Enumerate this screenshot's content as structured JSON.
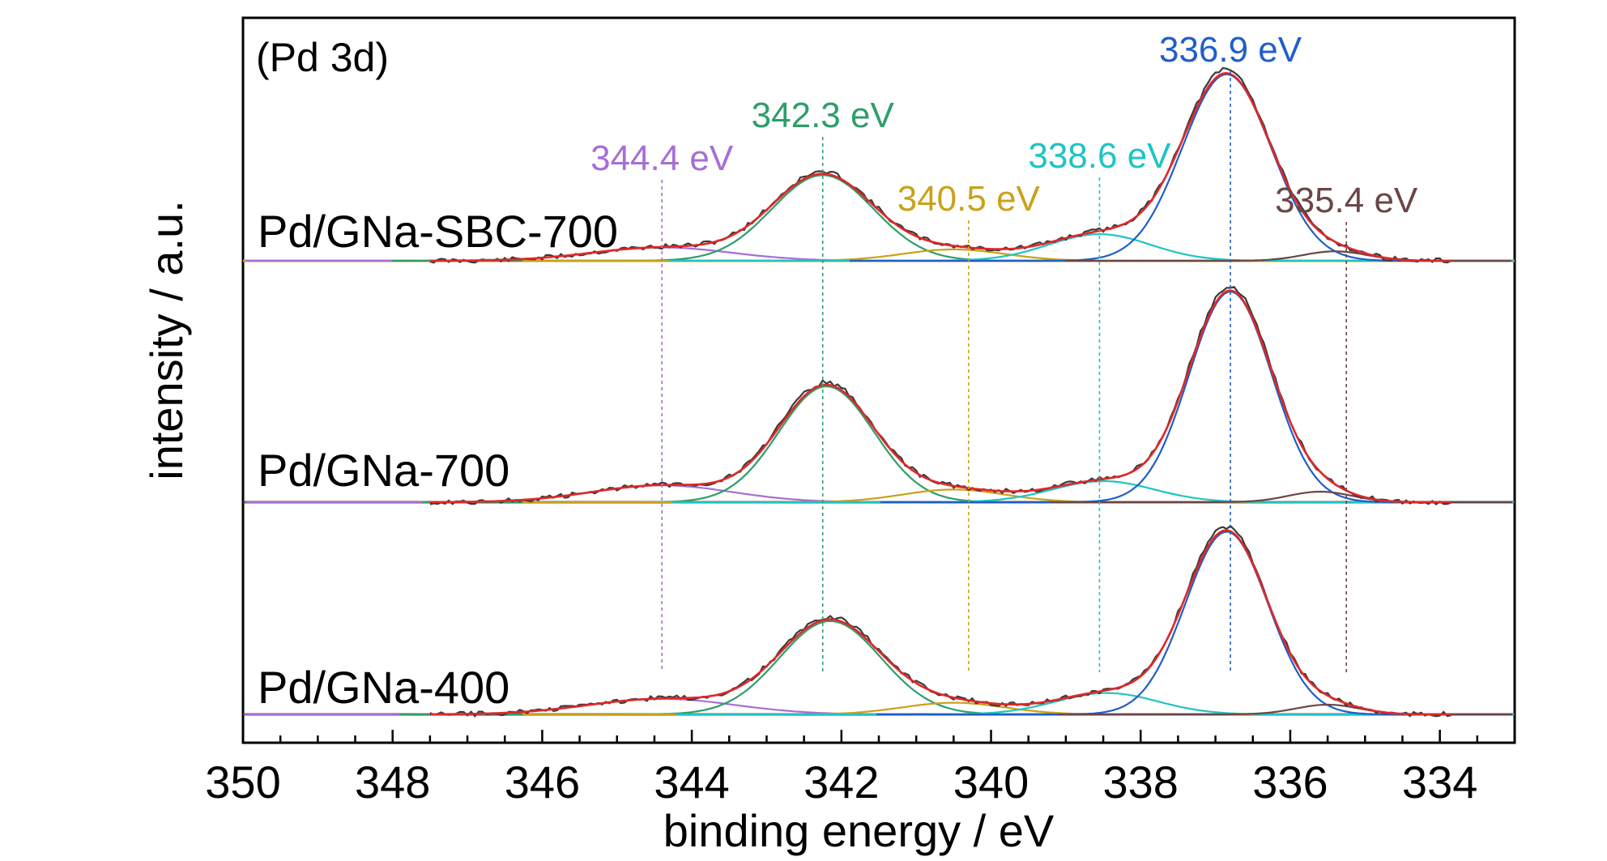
{
  "chart_data": {
    "type": "line",
    "panel_label": "(Pd 3d)",
    "xlabel": "binding energy / eV",
    "ylabel": "intensity / a.u.",
    "xlim": [
      350,
      333
    ],
    "x_reversed": true,
    "x_ticks": [
      350,
      348,
      346,
      344,
      342,
      340,
      338,
      336,
      334
    ],
    "grid": false,
    "legend": "none",
    "colors": {
      "raw": "#3a3a3a",
      "envelope": "#e02828",
      "baseline_top": "#c9a21a",
      "baseline": "#5a3a3a"
    },
    "peak_labels": [
      {
        "text": "344.4 eV",
        "position": 344.4,
        "color": "#a66fd6"
      },
      {
        "text": "342.3 eV",
        "position": 342.25,
        "color": "#2e9e6a"
      },
      {
        "text": "340.5 eV",
        "position": 340.3,
        "color": "#c9a21a"
      },
      {
        "text": "338.6 eV",
        "position": 338.55,
        "color": "#1fc4c4"
      },
      {
        "text": "336.9 eV",
        "position": 336.8,
        "color": "#1f5fc8"
      },
      {
        "text": "335.4 eV",
        "position": 335.25,
        "color": "#6b4646"
      }
    ],
    "series": [
      {
        "name": "Pd/GNa-SBC-700",
        "components": [
          {
            "center": 344.4,
            "height": 0.07,
            "fwhm": 2.2,
            "color": "#a66fd6"
          },
          {
            "center": 342.25,
            "height": 0.45,
            "fwhm": 1.6,
            "color": "#2e9e6a"
          },
          {
            "center": 340.5,
            "height": 0.06,
            "fwhm": 1.6,
            "color": "#c9a21a"
          },
          {
            "center": 338.55,
            "height": 0.14,
            "fwhm": 1.6,
            "color": "#1fc4c4"
          },
          {
            "center": 336.85,
            "height": 0.98,
            "fwhm": 1.4,
            "color": "#1f5fc8"
          },
          {
            "center": 335.4,
            "height": 0.05,
            "fwhm": 1.0,
            "color": "#6b4646"
          }
        ]
      },
      {
        "name": "Pd/GNa-700",
        "components": [
          {
            "center": 344.4,
            "height": 0.08,
            "fwhm": 2.2,
            "color": "#a66fd6"
          },
          {
            "center": 342.2,
            "height": 0.55,
            "fwhm": 1.5,
            "color": "#2e9e6a"
          },
          {
            "center": 340.5,
            "height": 0.06,
            "fwhm": 1.6,
            "color": "#c9a21a"
          },
          {
            "center": 338.5,
            "height": 0.1,
            "fwhm": 1.6,
            "color": "#1fc4c4"
          },
          {
            "center": 336.8,
            "height": 1.0,
            "fwhm": 1.3,
            "color": "#1f5fc8"
          },
          {
            "center": 335.6,
            "height": 0.05,
            "fwhm": 1.0,
            "color": "#6b4646"
          }
        ]
      },
      {
        "name": "Pd/GNa-400",
        "components": [
          {
            "center": 344.4,
            "height": 0.08,
            "fwhm": 2.3,
            "color": "#a66fd6"
          },
          {
            "center": 342.15,
            "height": 0.48,
            "fwhm": 1.6,
            "color": "#2e9e6a"
          },
          {
            "center": 340.5,
            "height": 0.06,
            "fwhm": 1.6,
            "color": "#c9a21a"
          },
          {
            "center": 338.45,
            "height": 0.11,
            "fwhm": 1.6,
            "color": "#1fc4c4"
          },
          {
            "center": 336.85,
            "height": 0.94,
            "fwhm": 1.3,
            "color": "#1f5fc8"
          },
          {
            "center": 335.5,
            "height": 0.05,
            "fwhm": 1.0,
            "color": "#6b4646"
          }
        ]
      }
    ]
  }
}
